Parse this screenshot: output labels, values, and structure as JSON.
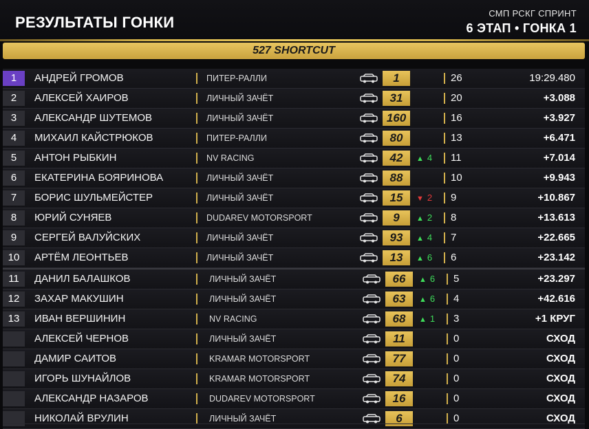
{
  "header": {
    "title": "РЕЗУЛЬТАТЫ ГОНКИ",
    "series": "СМП РСКГ СПРИНТ",
    "event": "6 ЭТАП • ГОНКА 1"
  },
  "banner": {
    "class_name": "527 SHORTCUT"
  },
  "colors": {
    "gold": "#d4b24a",
    "leader_position": "#6a40c4",
    "gain": "#3fdc5a",
    "loss": "#e03a3a"
  },
  "icons": {
    "car": "car-silhouette-icon",
    "gain": "arrow-up-icon",
    "loss": "arrow-down-icon"
  },
  "results": [
    {
      "pos": "1",
      "name": "АНДРЕЙ ГРОМОВ",
      "team": "ПИТЕР-РАЛЛИ",
      "number": "1",
      "change_dir": "",
      "change": "",
      "laps": "26",
      "time": "19:29.480"
    },
    {
      "pos": "2",
      "name": "АЛЕКСЕЙ ХАИРОВ",
      "team": "ЛИЧНЫЙ ЗАЧЁТ",
      "number": "31",
      "change_dir": "",
      "change": "",
      "laps": "20",
      "time": "+3.088"
    },
    {
      "pos": "3",
      "name": "АЛЕКСАНДР ШУТЕМОВ",
      "team": "ЛИЧНЫЙ ЗАЧЁТ",
      "number": "160",
      "change_dir": "",
      "change": "",
      "laps": "16",
      "time": "+3.927"
    },
    {
      "pos": "4",
      "name": "МИХАИЛ КАЙСТРЮКОВ",
      "team": "ПИТЕР-РАЛЛИ",
      "number": "80",
      "change_dir": "",
      "change": "",
      "laps": "13",
      "time": "+6.471"
    },
    {
      "pos": "5",
      "name": "АНТОН РЫБКИН",
      "team": "NV RACING",
      "number": "42",
      "change_dir": "up",
      "change": "4",
      "laps": "11",
      "time": "+7.014"
    },
    {
      "pos": "6",
      "name": "ЕКАТЕРИНА БОЯРИНОВА",
      "team": "ЛИЧНЫЙ ЗАЧЁТ",
      "number": "88",
      "change_dir": "",
      "change": "",
      "laps": "10",
      "time": "+9.943"
    },
    {
      "pos": "7",
      "name": "БОРИС ШУЛЬМЕЙСТЕР",
      "team": "ЛИЧНЫЙ ЗАЧЁТ",
      "number": "15",
      "change_dir": "down",
      "change": "2",
      "laps": "9",
      "time": "+10.867"
    },
    {
      "pos": "8",
      "name": "ЮРИЙ СУНЯЕВ",
      "team": "DUDAREV MOTORSPORT",
      "number": "9",
      "change_dir": "up",
      "change": "2",
      "laps": "8",
      "time": "+13.613"
    },
    {
      "pos": "9",
      "name": "СЕРГЕЙ ВАЛУЙСКИХ",
      "team": "ЛИЧНЫЙ ЗАЧЁТ",
      "number": "93",
      "change_dir": "up",
      "change": "4",
      "laps": "7",
      "time": "+22.665"
    },
    {
      "pos": "10",
      "name": "АРТЁМ ЛЕОНТЬЕВ",
      "team": "ЛИЧНЫЙ ЗАЧЁТ",
      "number": "13",
      "change_dir": "up",
      "change": "6",
      "laps": "6",
      "time": "+23.142"
    },
    {
      "pos": "11",
      "name": "ДАНИЛ БАЛАШКОВ",
      "team": "ЛИЧНЫЙ ЗАЧЁТ",
      "number": "66",
      "change_dir": "up",
      "change": "6",
      "laps": "5",
      "time": "+23.297"
    },
    {
      "pos": "12",
      "name": "ЗАХАР МАКУШИН",
      "team": "ЛИЧНЫЙ ЗАЧЁТ",
      "number": "63",
      "change_dir": "up",
      "change": "6",
      "laps": "4",
      "time": "+42.616"
    },
    {
      "pos": "13",
      "name": "ИВАН ВЕРШИНИН",
      "team": "NV RACING",
      "number": "68",
      "change_dir": "up",
      "change": "1",
      "laps": "3",
      "time": "+1 КРУГ"
    },
    {
      "pos": "",
      "name": "АЛЕКСЕЙ ЧЕРНОВ",
      "team": "ЛИЧНЫЙ ЗАЧЁТ",
      "number": "11",
      "change_dir": "",
      "change": "",
      "laps": "0",
      "time": "СХОД"
    },
    {
      "pos": "",
      "name": "ДАМИР САИТОВ",
      "team": "KRAMAR MOTORSPORT",
      "number": "77",
      "change_dir": "",
      "change": "",
      "laps": "0",
      "time": "СХОД"
    },
    {
      "pos": "",
      "name": "ИГОРЬ ШУНАЙЛОВ",
      "team": "KRAMAR MOTORSPORT",
      "number": "74",
      "change_dir": "",
      "change": "",
      "laps": "0",
      "time": "СХОД"
    },
    {
      "pos": "",
      "name": "АЛЕКСАНДР НАЗАРОВ",
      "team": "DUDAREV MOTORSPORT",
      "number": "16",
      "change_dir": "",
      "change": "",
      "laps": "0",
      "time": "СХОД"
    },
    {
      "pos": "",
      "name": "НИКОЛАЙ ВРУЛИН",
      "team": "ЛИЧНЫЙ ЗАЧЁТ",
      "number": "6",
      "change_dir": "",
      "change": "",
      "laps": "0",
      "time": "СХОД"
    }
  ]
}
